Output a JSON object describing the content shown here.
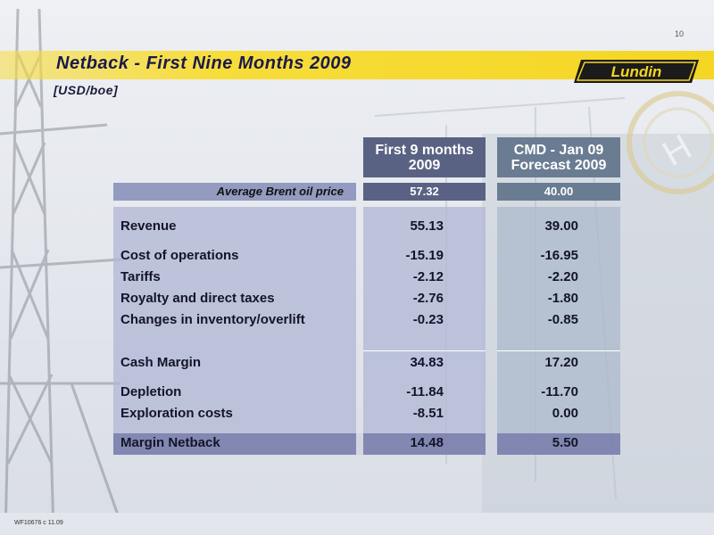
{
  "page_number": "10",
  "title": "Netback - First Nine Months 2009",
  "subtitle": "[USD/boe]",
  "logo_text": "Lundin",
  "footer_code": "WF10676 c 11.09",
  "table": {
    "columns": [
      "First 9 months 2009",
      "CMD - Jan 09 Forecast 2009"
    ],
    "columns_lines": [
      [
        "First 9 months",
        "2009"
      ],
      [
        "CMD - Jan 09",
        "Forecast 2009"
      ]
    ],
    "brent": {
      "label": "Average Brent oil price",
      "values": [
        "57.32",
        "40.00"
      ]
    },
    "rows": [
      {
        "label": "Revenue",
        "values": [
          "55.13",
          "39.00"
        ]
      },
      {
        "label": "Cost of operations",
        "values": [
          "-15.19",
          "-16.95"
        ]
      },
      {
        "label": "Tariffs",
        "values": [
          "-2.12",
          "-2.20"
        ]
      },
      {
        "label": "Royalty and direct taxes",
        "values": [
          "-2.76",
          "-1.80"
        ]
      },
      {
        "label": "Changes in inventory/overlift",
        "values": [
          "-0.23",
          "-0.85"
        ]
      },
      {
        "label": "Cash Margin",
        "values": [
          "34.83",
          "17.20"
        ]
      },
      {
        "label": "Depletion",
        "values": [
          "-11.84",
          "-11.70"
        ]
      },
      {
        "label": "Exploration costs",
        "values": [
          "-8.51",
          "0.00"
        ]
      },
      {
        "label": "Margin Netback",
        "values": [
          "14.48",
          "5.50"
        ]
      }
    ]
  },
  "colors": {
    "title_band": "#f4d623",
    "title_text": "#1a1a4a",
    "header_fill": "#5a6283",
    "panel_fill": "#b2b8d6"
  }
}
